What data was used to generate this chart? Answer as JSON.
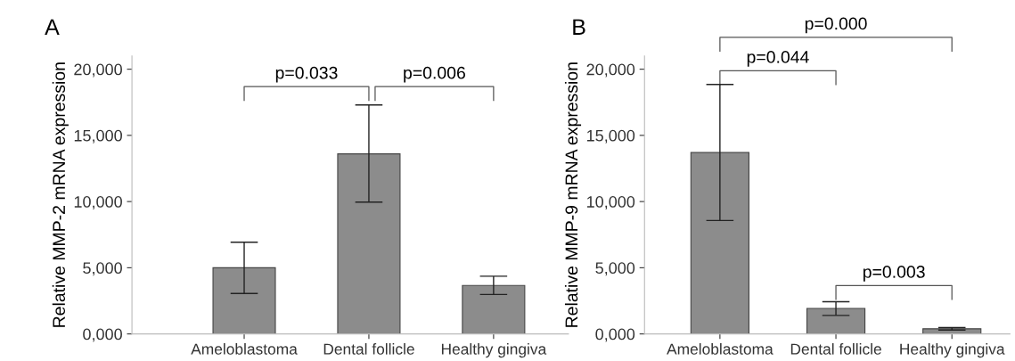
{
  "chart_data": [
    {
      "type": "bar",
      "title": "A",
      "ylabel": "Relative MMP-2 mRNA expression",
      "categories": [
        "Ameloblastoma",
        "Dental follicle",
        "Healthy gingiva"
      ],
      "values": [
        5000,
        13600,
        3660
      ],
      "errors": [
        [
          3060,
          6930
        ],
        [
          9960,
          17300
        ],
        [
          2980,
          4360
        ]
      ],
      "color": "#8c8c8c",
      "ylim": [
        0,
        21000
      ],
      "yticks": [
        {
          "value": 0,
          "label": "0,000"
        },
        {
          "value": 5000,
          "label": "5,000"
        },
        {
          "value": 10000,
          "label": "10,000"
        },
        {
          "value": 15000,
          "label": "15,000"
        },
        {
          "value": 20000,
          "label": "20,000"
        }
      ],
      "annotations": [
        "p=0.033",
        "p=0.006"
      ],
      "grid": false
    },
    {
      "type": "bar",
      "title": "B",
      "ylabel": "Relative MMP-9 mRNA expression",
      "categories": [
        "Ameloblastoma",
        "Dental follicle",
        "Healthy gingiva"
      ],
      "values": [
        13700,
        1930,
        390
      ],
      "errors": [
        [
          8570,
          18850
        ],
        [
          1400,
          2430
        ],
        [
          290,
          480
        ]
      ],
      "color": "#8c8c8c",
      "ylim": [
        0,
        21000
      ],
      "yticks": [
        {
          "value": 0,
          "label": "0,000"
        },
        {
          "value": 5000,
          "label": "5,000"
        },
        {
          "value": 10000,
          "label": "10,000"
        },
        {
          "value": 15000,
          "label": "15,000"
        },
        {
          "value": 20000,
          "label": "20,000"
        }
      ],
      "annotations": [
        "p=0.044",
        "p=0.000",
        "p=0.003"
      ],
      "grid": false
    }
  ]
}
